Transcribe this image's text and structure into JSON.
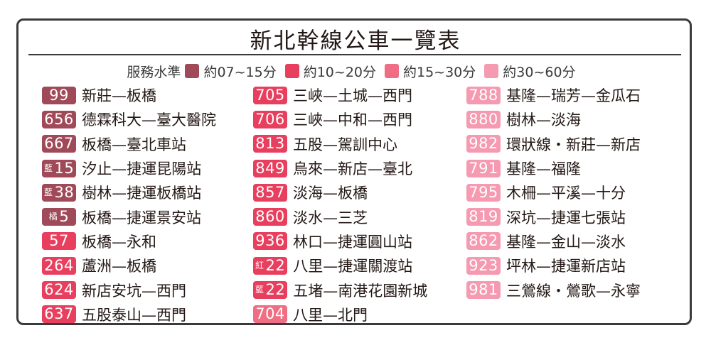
{
  "title": "新北幹線公車一覽表",
  "legend": {
    "label": "服務水準",
    "items": [
      {
        "text": "約07~15分",
        "color": "#a04a59"
      },
      {
        "text": "約10~20分",
        "color": "#e83f5e"
      },
      {
        "text": "約15~30分",
        "color": "#ef6e83"
      },
      {
        "text": "約30~60分",
        "color": "#f59ab0"
      }
    ]
  },
  "columns": [
    {
      "color": "#a04a59",
      "routes": [
        {
          "prefix": "",
          "num": "99",
          "name": "新莊—板橋"
        },
        {
          "prefix": "",
          "num": "656",
          "name": "德霖科大—臺大醫院"
        },
        {
          "prefix": "",
          "num": "667",
          "name": "板橋—臺北車站"
        },
        {
          "prefix": "藍",
          "num": "15",
          "name": "汐止—捷運昆陽站"
        },
        {
          "prefix": "藍",
          "num": "38",
          "name": "樹林—捷運板橋站"
        },
        {
          "prefix": "橘",
          "num": "5",
          "name": "板橋—捷運景安站"
        },
        {
          "prefix": "",
          "num": "57",
          "name": "板橋—永和",
          "color": "#e83f5e"
        },
        {
          "prefix": "",
          "num": "264",
          "name": "蘆洲—板橋",
          "color": "#e83f5e"
        },
        {
          "prefix": "",
          "num": "624",
          "name": "新店安坑—西門",
          "color": "#e83f5e"
        },
        {
          "prefix": "",
          "num": "637",
          "name": "五股泰山—西門",
          "color": "#e83f5e"
        }
      ]
    },
    {
      "color": "#e83f5e",
      "routes": [
        {
          "prefix": "",
          "num": "705",
          "name": "三峽—土城—西門"
        },
        {
          "prefix": "",
          "num": "706",
          "name": "三峽—中和—西門"
        },
        {
          "prefix": "",
          "num": "813",
          "name": "五股—駕訓中心"
        },
        {
          "prefix": "",
          "num": "849",
          "name": "烏來—新店—臺北"
        },
        {
          "prefix": "",
          "num": "857",
          "name": "淡海—板橋"
        },
        {
          "prefix": "",
          "num": "860",
          "name": "淡水—三芝"
        },
        {
          "prefix": "",
          "num": "936",
          "name": "林口—捷運圓山站"
        },
        {
          "prefix": "紅",
          "num": "22",
          "name": "八里—捷運關渡站"
        },
        {
          "prefix": "藍",
          "num": "22",
          "name": "五堵—南港花園新城"
        },
        {
          "prefix": "",
          "num": "704",
          "name": "八里—北門",
          "color": "#ef6e83"
        }
      ]
    },
    {
      "color": "#f59ab0",
      "routes": [
        {
          "prefix": "",
          "num": "788",
          "name": "基隆—瑞芳—金瓜石"
        },
        {
          "prefix": "",
          "num": "880",
          "name": "樹林—淡海"
        },
        {
          "prefix": "",
          "num": "982",
          "name": "環狀線・新莊—新店"
        },
        {
          "prefix": "",
          "num": "791",
          "name": "基隆—福隆"
        },
        {
          "prefix": "",
          "num": "795",
          "name": "木柵—平溪—十分"
        },
        {
          "prefix": "",
          "num": "819",
          "name": "深坑—捷運七張站"
        },
        {
          "prefix": "",
          "num": "862",
          "name": "基隆—金山—淡水"
        },
        {
          "prefix": "",
          "num": "923",
          "name": "坪林—捷運新店站"
        },
        {
          "prefix": "",
          "num": "981",
          "name": "三鶯線・鶯歌—永寧"
        }
      ]
    }
  ]
}
